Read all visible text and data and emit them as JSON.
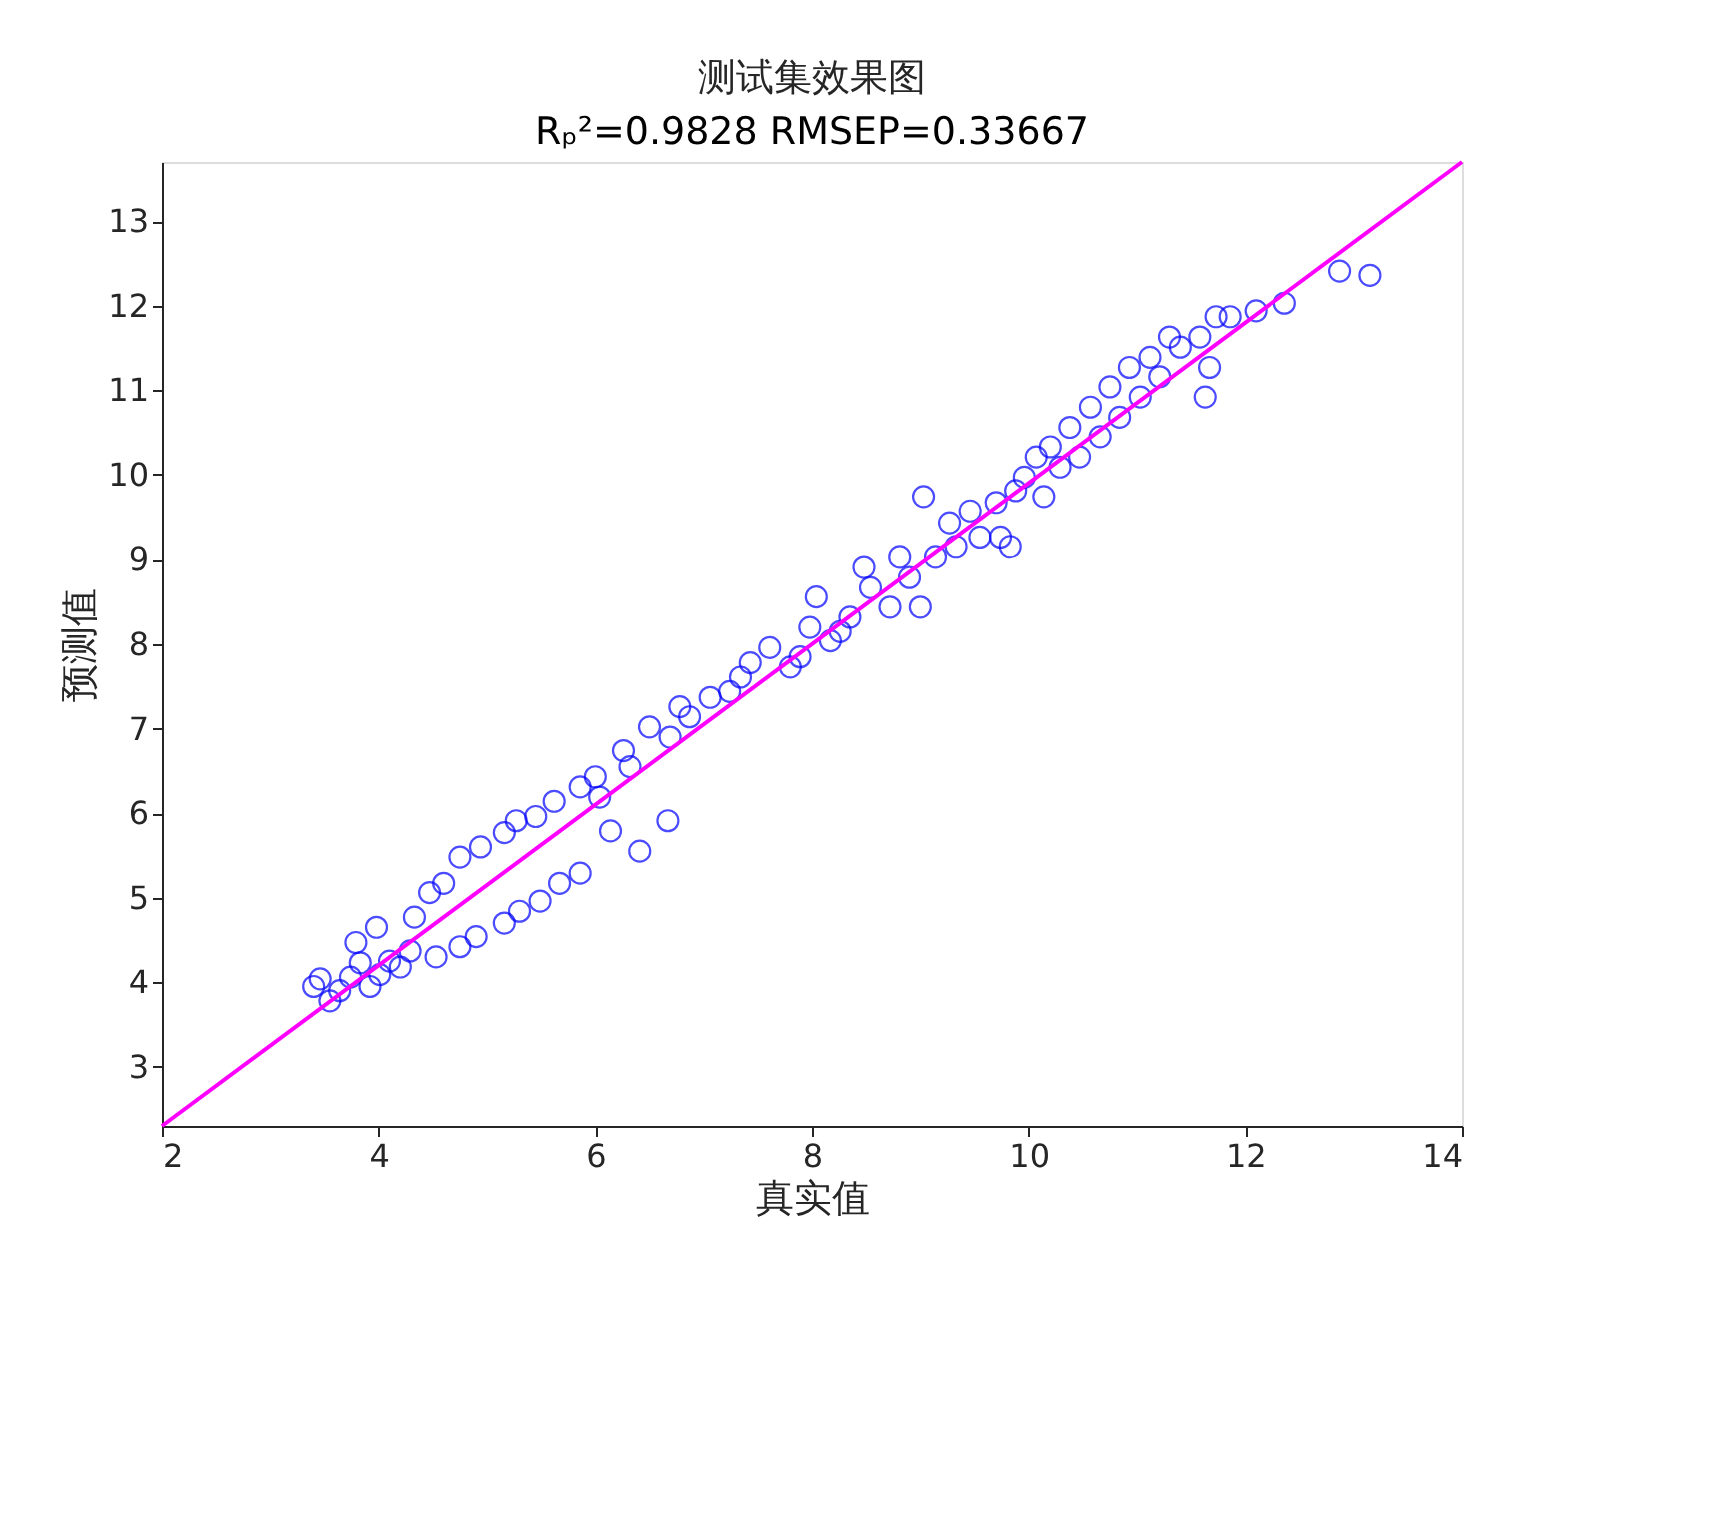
{
  "chart_data": {
    "type": "scatter",
    "title": "测试集效果图",
    "subtitle": "Rₚ²=0.9828  RMSEP=0.33667",
    "xlabel": "真实值",
    "ylabel": "预测值",
    "xlim": [
      2,
      14
    ],
    "ylim": [
      2.3,
      13.7
    ],
    "xticks": [
      2,
      4,
      6,
      8,
      10,
      12,
      14
    ],
    "yticks": [
      3,
      4,
      5,
      6,
      7,
      8,
      9,
      10,
      11,
      12,
      13
    ],
    "grid": false,
    "series": [
      {
        "marker": "circle",
        "color": "#0000ff",
        "x": [
          3.4,
          3.46,
          3.55,
          3.64,
          3.74,
          3.79,
          3.83,
          3.92,
          3.98,
          4.01,
          4.1,
          4.2,
          4.29,
          4.33,
          4.47,
          4.6,
          4.75,
          4.94,
          5.16,
          5.27,
          5.45,
          5.62,
          5.86,
          6.0,
          6.26,
          4.53,
          4.75,
          4.9,
          5.16,
          5.3,
          5.49,
          5.67,
          5.86,
          6.14,
          6.41,
          6.67,
          6.04,
          6.32,
          6.5,
          6.69,
          6.78,
          6.87,
          7.06,
          7.24,
          7.34,
          7.43,
          7.61,
          7.8,
          7.89,
          7.98,
          8.04,
          8.17,
          8.26,
          8.35,
          8.48,
          8.54,
          8.72,
          8.81,
          8.9,
          9.0,
          9.03,
          9.14,
          9.27,
          9.33,
          9.46,
          9.55,
          9.7,
          9.74,
          9.83,
          9.88,
          9.96,
          10.07,
          10.14,
          10.2,
          10.29,
          10.38,
          10.47,
          10.57,
          10.66,
          10.75,
          10.84,
          10.93,
          11.03,
          11.12,
          11.21,
          11.3,
          11.4,
          11.58,
          11.67,
          11.63,
          11.73,
          11.86,
          12.1,
          12.36,
          12.87,
          13.15
        ],
        "values": [
          3.95,
          4.04,
          3.78,
          3.9,
          4.06,
          4.47,
          4.23,
          3.95,
          4.65,
          4.09,
          4.25,
          4.18,
          4.37,
          4.77,
          5.06,
          5.17,
          5.48,
          5.6,
          5.77,
          5.91,
          5.96,
          6.14,
          6.31,
          6.43,
          6.74,
          4.3,
          4.42,
          4.54,
          4.7,
          4.84,
          4.96,
          5.17,
          5.29,
          5.79,
          5.55,
          5.91,
          6.19,
          6.55,
          7.02,
          6.9,
          7.26,
          7.14,
          7.37,
          7.44,
          7.61,
          7.78,
          7.96,
          7.73,
          7.85,
          8.2,
          8.56,
          8.04,
          8.15,
          8.32,
          8.91,
          8.67,
          8.44,
          9.03,
          8.79,
          8.44,
          9.74,
          9.03,
          9.43,
          9.15,
          9.57,
          9.26,
          9.67,
          9.26,
          9.15,
          9.81,
          9.97,
          10.21,
          9.74,
          10.33,
          10.09,
          10.56,
          10.21,
          10.8,
          10.45,
          11.04,
          10.68,
          11.27,
          10.92,
          11.39,
          11.16,
          11.63,
          11.51,
          11.63,
          11.27,
          10.92,
          11.87,
          11.87,
          11.94,
          12.03,
          12.41,
          12.36
        ]
      },
      {
        "type": "line",
        "marker": "none",
        "line_style": "solid",
        "color": "#ff00ff",
        "x": [
          2,
          14
        ],
        "values": [
          2.3,
          13.7
        ]
      }
    ]
  }
}
